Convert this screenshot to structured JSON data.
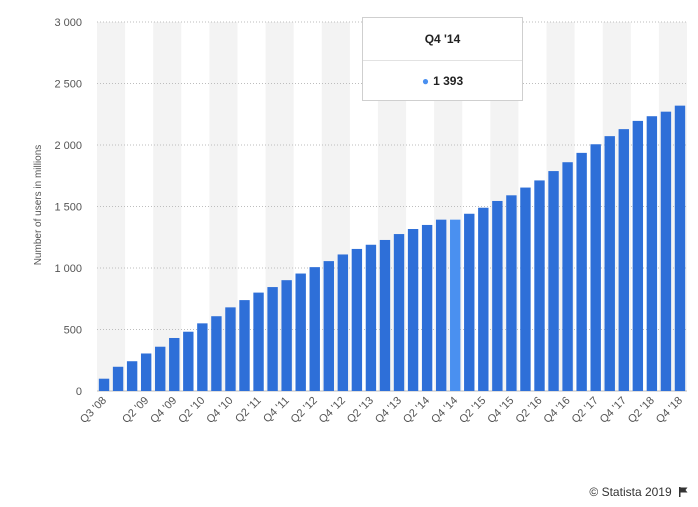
{
  "chart_data": {
    "type": "bar",
    "ylabel": "Number of users in millions",
    "ylim": [
      0,
      3000
    ],
    "yticks": [
      0,
      500,
      1000,
      1500,
      2000,
      2500,
      3000
    ],
    "ytick_labels": [
      "0",
      "500",
      "1 000",
      "1 500",
      "2 000",
      "2 500",
      "3 000"
    ],
    "categories": [
      "Q3 '08",
      "Q4 '08",
      "Q1 '09",
      "Q2 '09",
      "Q3 '09",
      "Q4 '09",
      "Q1 '10",
      "Q2 '10",
      "Q3 '10",
      "Q4 '10",
      "Q1 '11",
      "Q2 '11",
      "Q3 '11",
      "Q4 '11",
      "Q1 '12",
      "Q2 '12",
      "Q3 '12",
      "Q4 '12",
      "Q1 '13",
      "Q2 '13",
      "Q3 '13",
      "Q4 '13",
      "Q1 '14",
      "Q2 '14",
      "Q3 '14",
      "Q4 '14",
      "Q1 '15",
      "Q2 '15",
      "Q3 '15",
      "Q4 '15",
      "Q1 '16",
      "Q2 '16",
      "Q3 '16",
      "Q4 '16",
      "Q1 '17",
      "Q2 '17",
      "Q3 '17",
      "Q4 '17",
      "Q1 '18",
      "Q2 '18",
      "Q3 '18",
      "Q4 '18"
    ],
    "xtick_labels": [
      "Q3 '08",
      "Q2 '09",
      "Q4 '09",
      "Q2 '10",
      "Q4 '10",
      "Q2 '11",
      "Q4 '11",
      "Q2 '12",
      "Q4 '12",
      "Q2 '13",
      "Q4 '13",
      "Q2 '14",
      "Q4 '14",
      "Q2 '15",
      "Q4 '15",
      "Q2 '16",
      "Q4 '16",
      "Q2 '17",
      "Q4 '17",
      "Q2 '18",
      "Q4 '18"
    ],
    "values": [
      100,
      197,
      242,
      305,
      360,
      431,
      482,
      550,
      608,
      680,
      739,
      800,
      845,
      901,
      955,
      1007,
      1056,
      1110,
      1155,
      1189,
      1228,
      1276,
      1317,
      1350,
      1393,
      1393,
      1441,
      1490,
      1545,
      1591,
      1654,
      1712,
      1788,
      1860,
      1936,
      2006,
      2072,
      2129,
      2196,
      2234,
      2271,
      2320
    ],
    "highlight_index": 25,
    "colors": {
      "bar": "#2e6fd8",
      "highlight": "#4a90f0",
      "band": "#f3f3f3",
      "grid": "#bdbdbd"
    },
    "grid": true
  },
  "tooltip": {
    "title": "Q4 '14",
    "value": "1 393"
  },
  "credit": "© Statista 2019"
}
